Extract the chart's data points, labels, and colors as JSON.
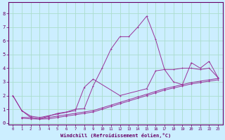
{
  "xlabel": "Windchill (Refroidissement éolien,°C)",
  "background_color": "#cceeff",
  "grid_color": "#aaddcc",
  "line_color": "#993399",
  "xlim": [
    -0.5,
    23.5
  ],
  "ylim": [
    -0.1,
    8.8
  ],
  "xticks": [
    0,
    1,
    2,
    3,
    4,
    5,
    6,
    7,
    8,
    9,
    10,
    11,
    12,
    13,
    14,
    15,
    16,
    17,
    18,
    19,
    20,
    21,
    22,
    23
  ],
  "yticks": [
    0,
    1,
    2,
    3,
    4,
    5,
    6,
    7,
    8
  ],
  "series1": [
    [
      0,
      2.0
    ],
    [
      1,
      0.9
    ],
    [
      2,
      0.4
    ],
    [
      3,
      0.3
    ],
    [
      4,
      0.5
    ],
    [
      5,
      0.7
    ],
    [
      6,
      0.8
    ],
    [
      7,
      1.0
    ],
    [
      8,
      1.05
    ],
    [
      9,
      2.7
    ],
    [
      10,
      4.0
    ],
    [
      11,
      5.4
    ],
    [
      12,
      6.3
    ],
    [
      13,
      6.3
    ],
    [
      14,
      7.0
    ],
    [
      15,
      7.8
    ],
    [
      16,
      6.1
    ],
    [
      17,
      3.9
    ],
    [
      18,
      3.0
    ],
    [
      19,
      2.8
    ],
    [
      20,
      4.4
    ],
    [
      21,
      4.0
    ],
    [
      22,
      4.5
    ],
    [
      23,
      3.3
    ]
  ],
  "series2": [
    [
      0,
      2.0
    ],
    [
      1,
      0.9
    ],
    [
      2,
      0.5
    ],
    [
      3,
      0.4
    ],
    [
      5,
      0.65
    ],
    [
      7,
      0.9
    ],
    [
      8,
      2.6
    ],
    [
      9,
      3.2
    ],
    [
      12,
      2.0
    ],
    [
      15,
      2.5
    ],
    [
      16,
      3.8
    ],
    [
      17,
      3.9
    ],
    [
      18,
      3.9
    ],
    [
      19,
      4.0
    ],
    [
      20,
      4.0
    ],
    [
      21,
      3.9
    ],
    [
      22,
      4.0
    ],
    [
      23,
      3.3
    ]
  ],
  "series3": [
    [
      1,
      0.4
    ],
    [
      2,
      0.4
    ],
    [
      3,
      0.3
    ],
    [
      4,
      0.4
    ],
    [
      5,
      0.5
    ],
    [
      6,
      0.6
    ],
    [
      7,
      0.7
    ],
    [
      8,
      0.8
    ],
    [
      9,
      0.9
    ],
    [
      10,
      1.1
    ],
    [
      11,
      1.3
    ],
    [
      12,
      1.5
    ],
    [
      13,
      1.7
    ],
    [
      14,
      1.9
    ],
    [
      15,
      2.1
    ],
    [
      16,
      2.3
    ],
    [
      17,
      2.5
    ],
    [
      18,
      2.65
    ],
    [
      19,
      2.8
    ],
    [
      20,
      2.95
    ],
    [
      21,
      3.05
    ],
    [
      22,
      3.15
    ],
    [
      23,
      3.25
    ]
  ],
  "series4": [
    [
      1,
      0.35
    ],
    [
      2,
      0.3
    ],
    [
      3,
      0.28
    ],
    [
      4,
      0.3
    ],
    [
      5,
      0.4
    ],
    [
      6,
      0.5
    ],
    [
      7,
      0.6
    ],
    [
      8,
      0.7
    ],
    [
      9,
      0.8
    ],
    [
      10,
      1.0
    ],
    [
      11,
      1.2
    ],
    [
      12,
      1.4
    ],
    [
      13,
      1.6
    ],
    [
      14,
      1.8
    ],
    [
      15,
      2.0
    ],
    [
      16,
      2.2
    ],
    [
      17,
      2.4
    ],
    [
      18,
      2.55
    ],
    [
      19,
      2.7
    ],
    [
      20,
      2.85
    ],
    [
      21,
      2.95
    ],
    [
      22,
      3.05
    ],
    [
      23,
      3.15
    ]
  ]
}
